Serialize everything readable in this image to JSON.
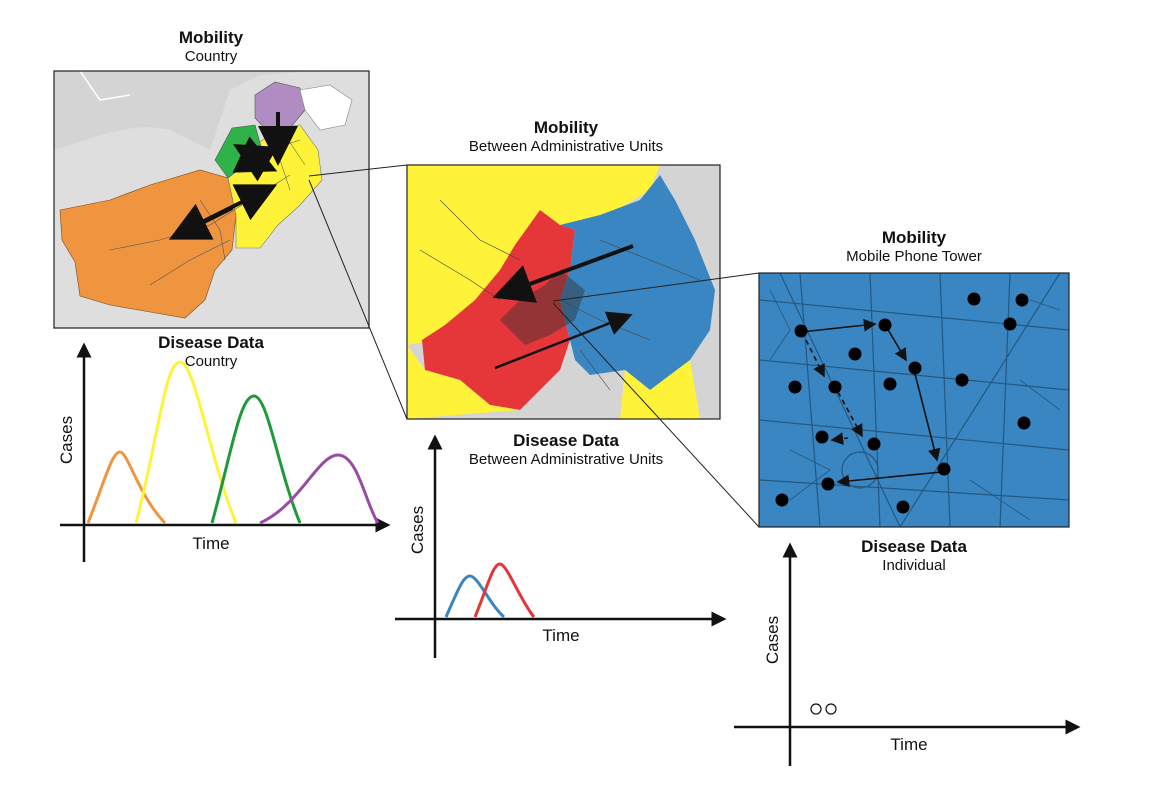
{
  "panels": {
    "country": {
      "mobility_title": "Mobility",
      "mobility_sub": "Country",
      "disease_title": "Disease Data",
      "disease_sub": "Country",
      "x_label": "Time",
      "y_label": "Cases"
    },
    "admin": {
      "mobility_title": "Mobility",
      "mobility_sub": "Between Administrative Units",
      "disease_title": "Disease Data",
      "disease_sub": "Between Administrative Units",
      "x_label": "Time",
      "y_label": "Cases"
    },
    "tower": {
      "mobility_title": "Mobility",
      "mobility_sub": "Mobile Phone Tower",
      "disease_title": "Disease Data",
      "disease_sub": "Individual",
      "x_label": "Time",
      "y_label": "Cases"
    }
  },
  "colors": {
    "orange": "#f0953f",
    "yellow": "#fff33a",
    "green": "#1f9a3a",
    "purple": "#9a4aa6",
    "red": "#e5363a",
    "blue": "#3a86c2",
    "map_bg": "#d4d4d4"
  },
  "icons": [
    "arrow-icon",
    "tower-dot-icon",
    "open-circle-icon"
  ]
}
